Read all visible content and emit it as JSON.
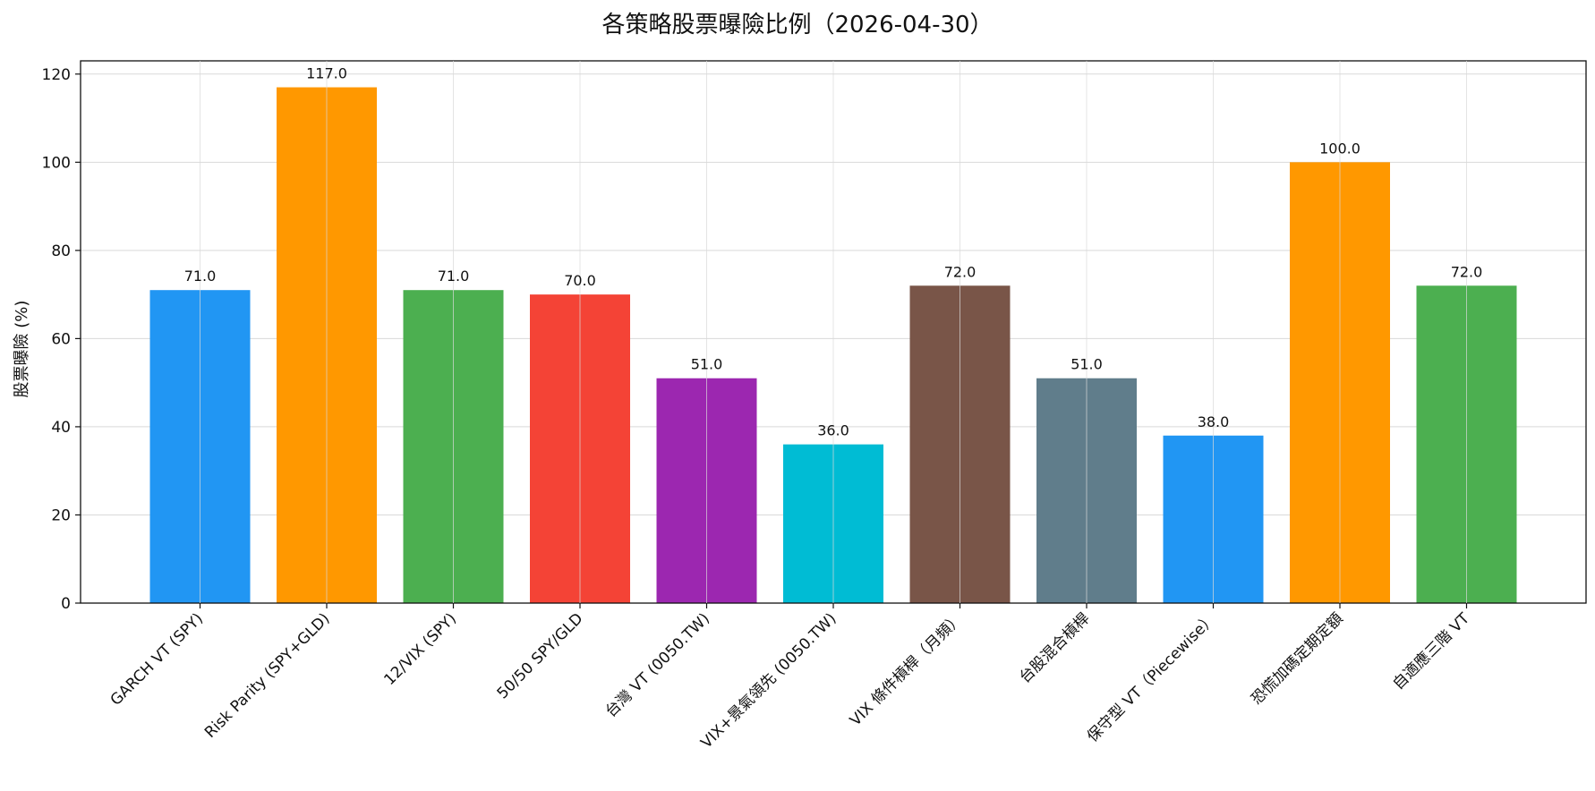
{
  "chart_data": {
    "type": "bar",
    "title": "各策略股票曝險比例（2026-04-30）",
    "xlabel": "",
    "ylabel": "股票曝險 (%)",
    "ylim": [
      0,
      123
    ],
    "yticks": [
      0,
      20,
      40,
      60,
      80,
      100,
      120
    ],
    "grid": true,
    "categories": [
      "GARCH VT (SPY)",
      "Risk Parity (SPY+GLD)",
      "12/VIX (SPY)",
      "50/50 SPY/GLD",
      "台灣 VT (0050.TW)",
      "VIX+景氣領先 (0050.TW)",
      "VIX 條件槓桿（月頻）",
      "台股混合槓桿",
      "保守型 VT（Piecewise）",
      "恐慌加碼定期定額",
      "自適應三階 VT"
    ],
    "values": [
      71.0,
      117.0,
      71.0,
      70.0,
      51.0,
      36.0,
      72.0,
      51.0,
      38.0,
      100.0,
      72.0
    ],
    "value_labels": [
      "71.0",
      "117.0",
      "71.0",
      "70.0",
      "51.0",
      "36.0",
      "72.0",
      "51.0",
      "38.0",
      "100.0",
      "72.0"
    ],
    "colors": [
      "#2196F3",
      "#FF9800",
      "#4CAF50",
      "#F44336",
      "#9C27B0",
      "#00BCD4",
      "#795548",
      "#607D8B",
      "#2196F3",
      "#FF9800",
      "#4CAF50"
    ]
  }
}
